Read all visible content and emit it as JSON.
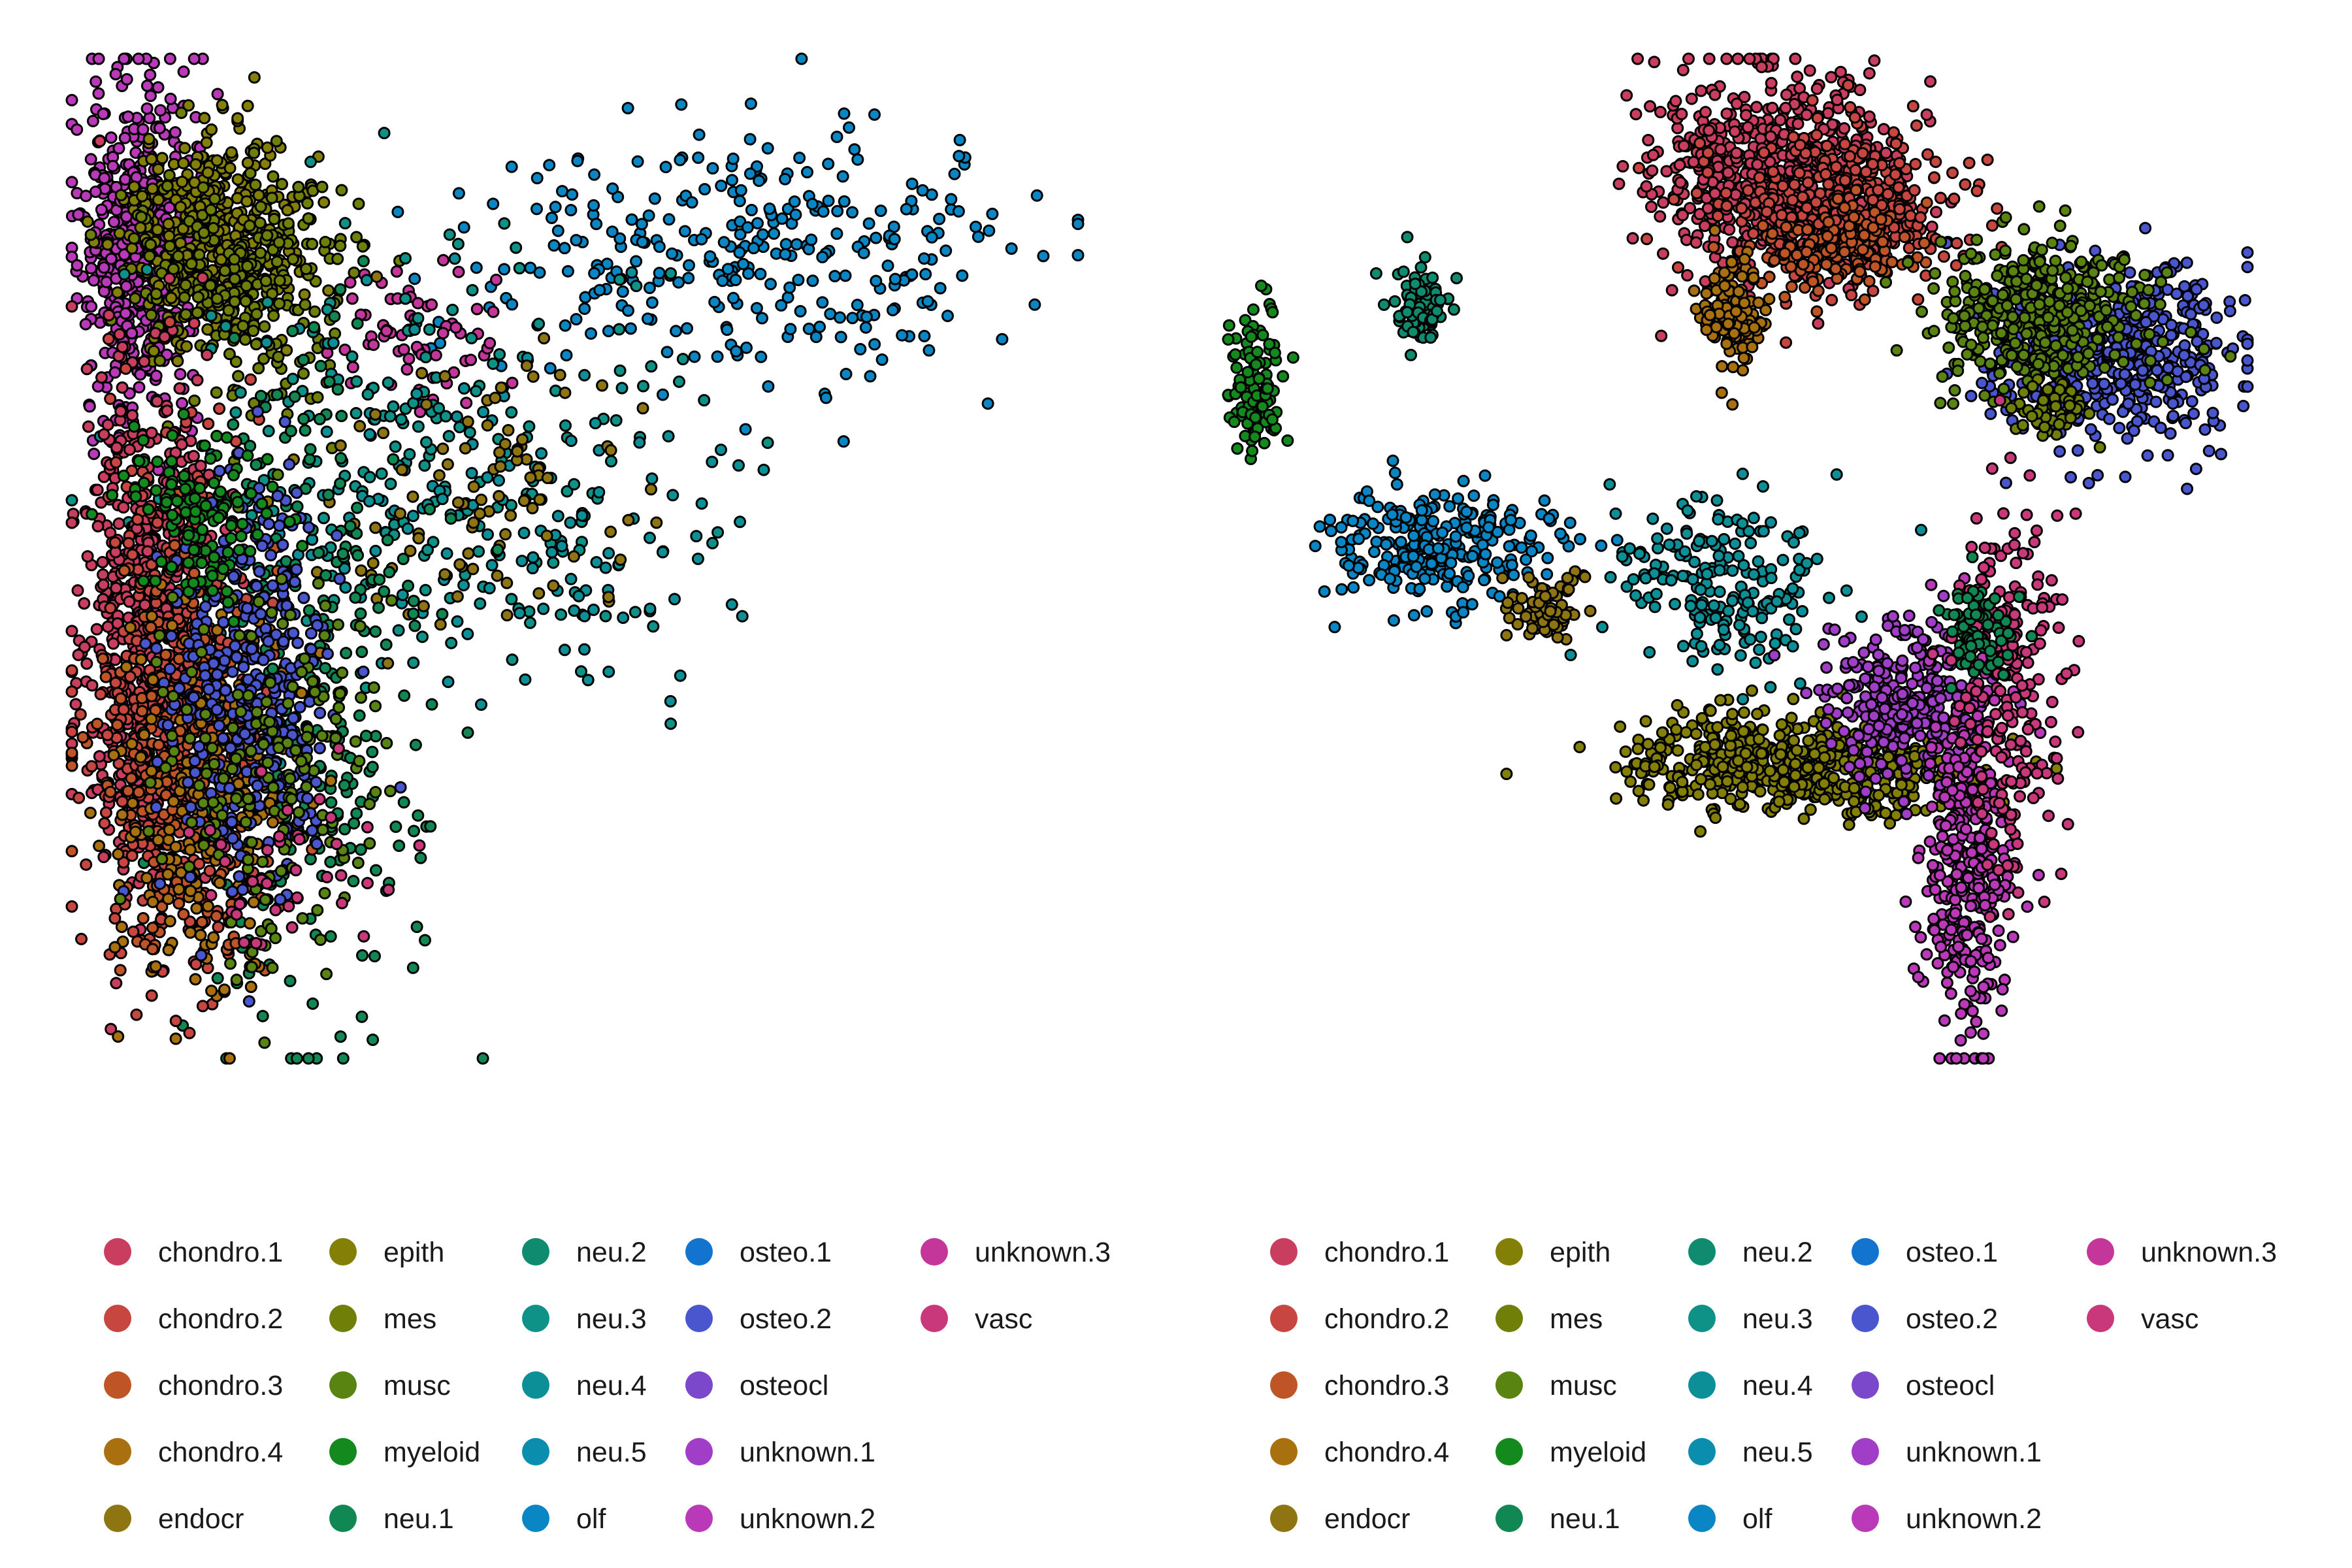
{
  "legend_entries": [
    {
      "label": "chondro.1",
      "color": "#C93E5E"
    },
    {
      "label": "chondro.2",
      "color": "#C84640"
    },
    {
      "label": "chondro.3",
      "color": "#BF5526"
    },
    {
      "label": "chondro.4",
      "color": "#A8700E"
    },
    {
      "label": "endocr",
      "color": "#8E7512"
    },
    {
      "label": "epith",
      "color": "#847F06"
    },
    {
      "label": "mes",
      "color": "#6F7F08"
    },
    {
      "label": "musc",
      "color": "#5A8412"
    },
    {
      "label": "myeloid",
      "color": "#13891E"
    },
    {
      "label": "neu.1",
      "color": "#118853"
    },
    {
      "label": "neu.2",
      "color": "#0F8C70"
    },
    {
      "label": "neu.3",
      "color": "#0E9186"
    },
    {
      "label": "neu.4",
      "color": "#0D8F98"
    },
    {
      "label": "neu.5",
      "color": "#0B8EAE"
    },
    {
      "label": "olf",
      "color": "#0A86C5"
    },
    {
      "label": "osteo.1",
      "color": "#1274CE"
    },
    {
      "label": "osteo.2",
      "color": "#4A56CE"
    },
    {
      "label": "osteocl",
      "color": "#7B48CC"
    },
    {
      "label": "unknown.1",
      "color": "#A13EC8"
    },
    {
      "label": "unknown.2",
      "color": "#BA39B8"
    },
    {
      "label": "unknown.3",
      "color": "#C43699"
    },
    {
      "label": "vasc",
      "color": "#C9387A"
    }
  ],
  "chart_data": [
    {
      "type": "scatter",
      "title": "",
      "xlabel": "",
      "ylabel": "",
      "axes": "hidden",
      "grid": false,
      "legend_placement": "bottom",
      "point_outline": "#000000",
      "clusters": [
        {
          "name": "unknown.2",
          "center": [
            0.6,
            8.7
          ],
          "spread": [
            0.5,
            1.0
          ],
          "n": 500
        },
        {
          "name": "epith",
          "center": [
            1.9,
            8.9
          ],
          "spread": [
            0.8,
            0.6
          ],
          "n": 420
        },
        {
          "name": "mes",
          "center": [
            2.5,
            8.3
          ],
          "spread": [
            1.0,
            0.7
          ],
          "n": 260
        },
        {
          "name": "olf",
          "center": [
            11.5,
            8.6
          ],
          "spread": [
            2.6,
            0.8
          ],
          "n": 320
        },
        {
          "name": "unknown.3",
          "center": [
            5.7,
            7.7
          ],
          "spread": [
            0.9,
            0.4
          ],
          "n": 70
        },
        {
          "name": "neu.3",
          "center": [
            5.5,
            6.2
          ],
          "spread": [
            2.2,
            1.3
          ],
          "n": 220
        },
        {
          "name": "neu.4",
          "center": [
            6.9,
            5.3
          ],
          "spread": [
            2.4,
            1.1
          ],
          "n": 150
        },
        {
          "name": "endocr",
          "center": [
            6.4,
            5.8
          ],
          "spread": [
            1.8,
            0.9
          ],
          "n": 100
        },
        {
          "name": "neu.1",
          "center": [
            3.6,
            3.6
          ],
          "spread": [
            1.1,
            2.0
          ],
          "n": 320
        },
        {
          "name": "chondro.1",
          "center": [
            0.8,
            4.2
          ],
          "spread": [
            0.6,
            1.5
          ],
          "n": 650
        },
        {
          "name": "chondro.2",
          "center": [
            1.3,
            3.2
          ],
          "spread": [
            0.7,
            1.4
          ],
          "n": 450
        },
        {
          "name": "chondro.3",
          "center": [
            1.6,
            2.6
          ],
          "spread": [
            0.8,
            1.1
          ],
          "n": 260
        },
        {
          "name": "chondro.4",
          "center": [
            1.9,
            2.2
          ],
          "spread": [
            0.8,
            1.2
          ],
          "n": 200
        },
        {
          "name": "osteo.2",
          "center": [
            2.6,
            3.6
          ],
          "spread": [
            0.8,
            1.2
          ],
          "n": 350
        },
        {
          "name": "musc",
          "center": [
            3.0,
            2.6
          ],
          "spread": [
            1.0,
            1.2
          ],
          "n": 180
        },
        {
          "name": "myeloid",
          "center": [
            1.8,
            5.6
          ],
          "spread": [
            0.6,
            0.5
          ],
          "n": 120
        },
        {
          "name": "vasc",
          "center": [
            3.0,
            1.4
          ],
          "spread": [
            0.9,
            0.5
          ],
          "n": 40
        }
      ]
    },
    {
      "type": "scatter",
      "title": "",
      "xlabel": "",
      "ylabel": "",
      "axes": "hidden",
      "grid": false,
      "legend_placement": "bottom",
      "point_outline": "#000000",
      "clusters": [
        {
          "name": "chondro.1",
          "center": [
            4.3,
            11.0
          ],
          "spread": [
            0.9,
            1.0
          ],
          "n": 600
        },
        {
          "name": "chondro.2",
          "center": [
            5.4,
            10.2
          ],
          "spread": [
            0.9,
            0.8
          ],
          "n": 350
        },
        {
          "name": "chondro.3",
          "center": [
            5.3,
            9.4
          ],
          "spread": [
            0.6,
            0.4
          ],
          "n": 160
        },
        {
          "name": "chondro.4",
          "center": [
            3.7,
            8.1
          ],
          "spread": [
            0.25,
            0.6
          ],
          "n": 120
        },
        {
          "name": "osteo.2",
          "center": [
            9.3,
            7.3
          ],
          "spread": [
            0.9,
            0.9
          ],
          "n": 500
        },
        {
          "name": "musc",
          "center": [
            8.2,
            8.1
          ],
          "spread": [
            0.8,
            0.8
          ],
          "n": 380
        },
        {
          "name": "mes",
          "center": [
            8.4,
            6.2
          ],
          "spread": [
            0.3,
            0.3
          ],
          "n": 60
        },
        {
          "name": "myeloid",
          "center": [
            -3.2,
            6.8
          ],
          "spread": [
            0.2,
            0.7
          ],
          "n": 100
        },
        {
          "name": "neu.2",
          "center": [
            -0.8,
            8.2
          ],
          "spread": [
            0.2,
            0.4
          ],
          "n": 90
        },
        {
          "name": "olf",
          "center": [
            -0.5,
            3.5
          ],
          "spread": [
            0.9,
            0.6
          ],
          "n": 260
        },
        {
          "name": "neu.4",
          "center": [
            3.6,
            2.8
          ],
          "spread": [
            0.8,
            0.9
          ],
          "n": 200
        },
        {
          "name": "endocr",
          "center": [
            1.0,
            2.2
          ],
          "spread": [
            0.3,
            0.3
          ],
          "n": 80
        },
        {
          "name": "epith",
          "center": [
            4.8,
            -0.9
          ],
          "spread": [
            1.2,
            0.5
          ],
          "n": 600
        },
        {
          "name": "unknown.1",
          "center": [
            6.4,
            0.4
          ],
          "spread": [
            0.6,
            0.8
          ],
          "n": 300
        },
        {
          "name": "unknown.2",
          "center": [
            7.2,
            -2.8
          ],
          "spread": [
            0.3,
            1.8
          ],
          "n": 350
        },
        {
          "name": "vasc",
          "center": [
            7.8,
            0.8
          ],
          "spread": [
            0.4,
            2.0
          ],
          "n": 200
        },
        {
          "name": "neu.1",
          "center": [
            7.3,
            1.8
          ],
          "spread": [
            0.3,
            0.5
          ],
          "n": 80
        }
      ]
    }
  ]
}
